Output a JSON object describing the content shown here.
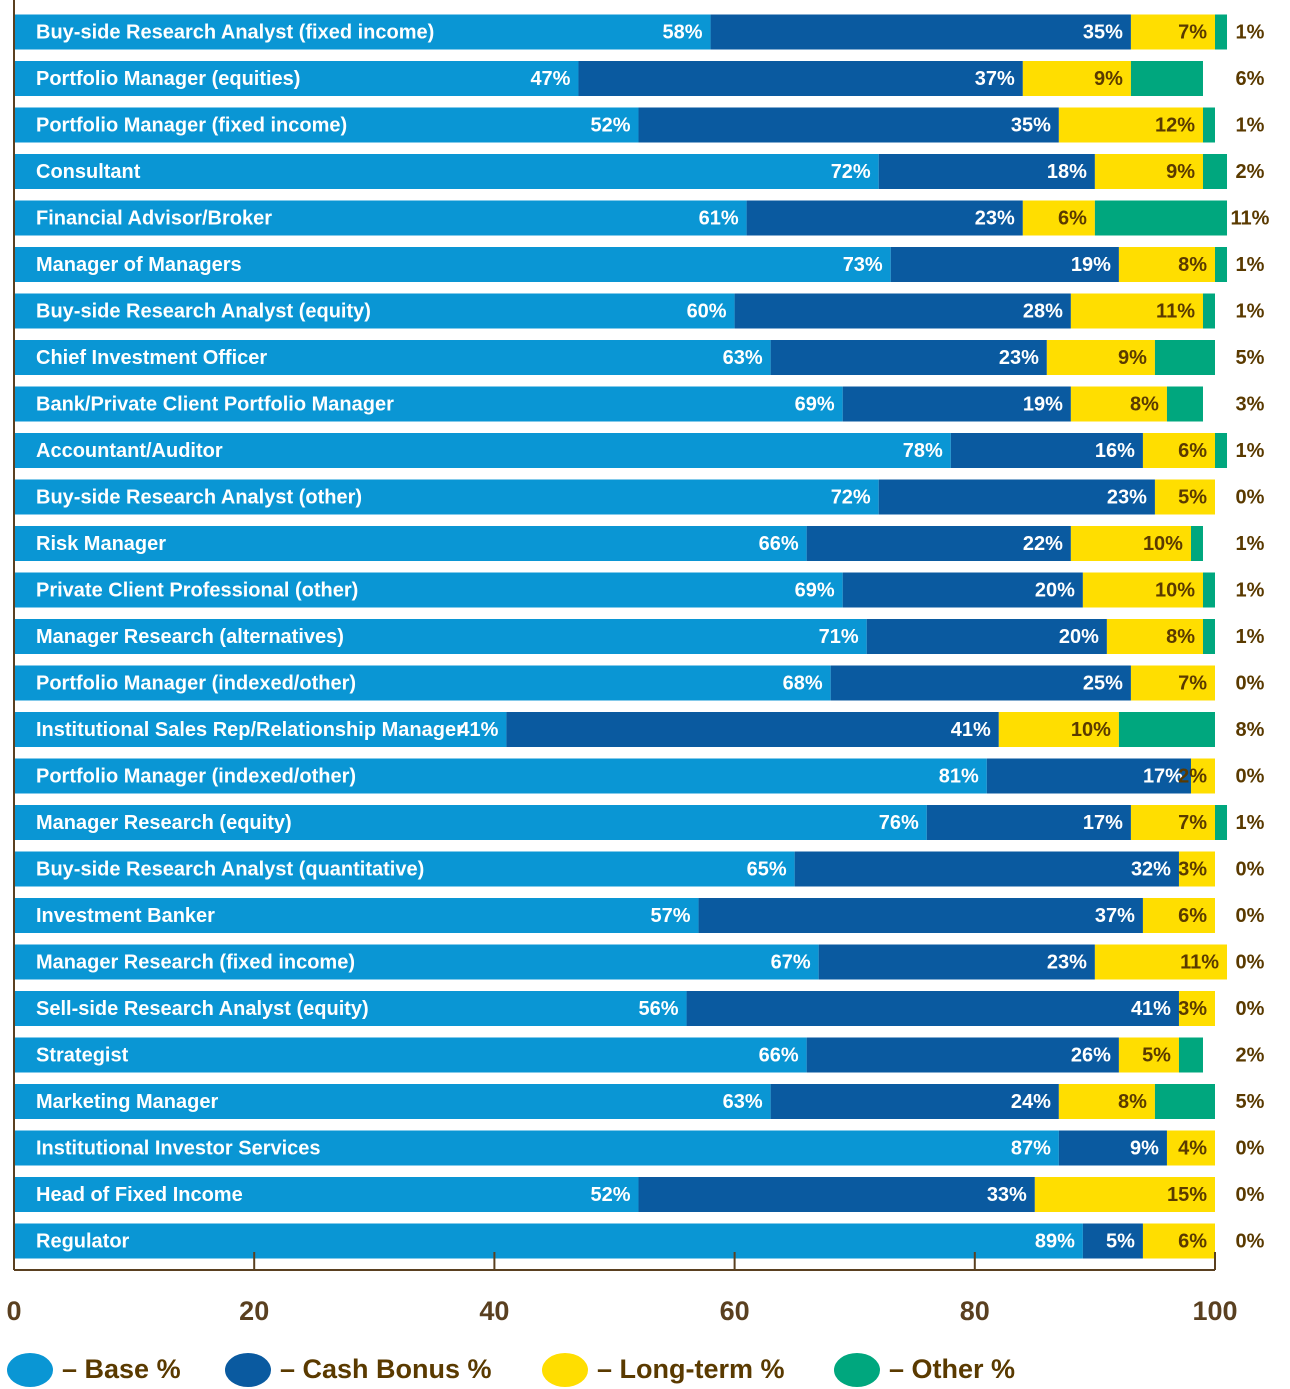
{
  "chart_data": {
    "type": "stacked-bar-horizontal",
    "categories": [
      "Buy-side Research Analyst (fixed income)",
      "Portfolio Manager (equities)",
      "Portfolio Manager (fixed income)",
      "Consultant",
      "Financial Advisor/Broker",
      "Manager of Managers",
      "Buy-side Research Analyst (equity)",
      "Chief Investment Officer",
      "Bank/Private Client Portfolio Manager",
      "Accountant/Auditor",
      "Buy-side Research Analyst (other)",
      "Risk Manager",
      "Private Client Professional (other)",
      "Manager Research (alternatives)",
      "Portfolio Manager (indexed/other)",
      "Institutional Sales Rep/Relationship Manager",
      "Portfolio Manager (indexed/other)",
      "Manager Research (equity)",
      "Buy-side Research Analyst (quantitative)",
      "Investment Banker",
      "Manager Research (fixed income)",
      "Sell-side Research Analyst (equity)",
      "Strategist",
      "Marketing Manager",
      "Institutional Investor Services",
      "Head of Fixed Income",
      "Regulator"
    ],
    "series": [
      {
        "name": "– Base %",
        "color": "#0a96d4",
        "values": [
          58,
          47,
          52,
          72,
          61,
          73,
          60,
          63,
          69,
          78,
          72,
          66,
          69,
          71,
          68,
          41,
          81,
          76,
          65,
          57,
          67,
          56,
          66,
          63,
          87,
          52,
          89
        ],
        "value_labels": [
          "58%",
          "47%",
          "52%",
          "72%",
          "61%",
          "73%",
          "60%",
          "63%",
          "69%",
          "78%",
          "72%",
          "66%",
          "69%",
          "71%",
          "68%",
          "41%",
          "81%",
          "76%",
          "65%",
          "57%",
          "67%",
          "56%",
          "66%",
          "63%",
          "87%",
          "52%",
          "89%"
        ]
      },
      {
        "name": "– Cash Bonus %",
        "color": "#0a5aa0",
        "values": [
          35,
          37,
          35,
          18,
          23,
          19,
          28,
          23,
          19,
          16,
          23,
          22,
          20,
          20,
          25,
          41,
          17,
          17,
          32,
          37,
          23,
          41,
          26,
          24,
          9,
          33,
          5
        ],
        "value_labels": [
          "35%",
          "37%",
          "35%",
          "18%",
          "23%",
          "19%",
          "28%",
          "23%",
          "19%",
          "16%",
          "23%",
          "22%",
          "20%",
          "20%",
          "25%",
          "41%",
          "17%",
          "17%",
          "32%",
          "37%",
          "23%",
          "41%",
          "26%",
          "24%",
          "9%",
          "33%",
          "5%"
        ]
      },
      {
        "name": "– Long-term %",
        "color": "#ffde00",
        "values": [
          7,
          9,
          12,
          9,
          6,
          8,
          11,
          9,
          8,
          6,
          5,
          10,
          10,
          8,
          7,
          10,
          2,
          7,
          3,
          6,
          11,
          3,
          5,
          8,
          4,
          15,
          6
        ],
        "value_labels": [
          "7%",
          "9%",
          "12%",
          "9%",
          "6%",
          "8%",
          "11%",
          "9%",
          "8%",
          "6%",
          "5%",
          "10%",
          "10%",
          "8%",
          "7%",
          "10%",
          "2%",
          "7%",
          "3%",
          "6%",
          "11%",
          "3%",
          "5%",
          "8%",
          "4%",
          "15%",
          "6%"
        ]
      },
      {
        "name": "– Other %",
        "color": "#00a77e",
        "values": [
          1,
          6,
          1,
          2,
          11,
          1,
          1,
          5,
          3,
          1,
          0,
          1,
          1,
          1,
          0,
          8,
          0,
          1,
          0,
          0,
          0,
          0,
          2,
          5,
          0,
          0,
          0
        ],
        "value_labels": [
          "1%",
          "6%",
          "1%",
          "2%",
          "11%",
          "1%",
          "1%",
          "5%",
          "3%",
          "1%",
          "0%",
          "1%",
          "1%",
          "1%",
          "0%",
          "8%",
          "0%",
          "1%",
          "0%",
          "0%",
          "0%",
          "0%",
          "2%",
          "5%",
          "0%",
          "0%",
          "0%"
        ]
      }
    ],
    "xlim": [
      0,
      100
    ],
    "xticks": [
      0,
      20,
      40,
      60,
      80,
      100
    ]
  }
}
